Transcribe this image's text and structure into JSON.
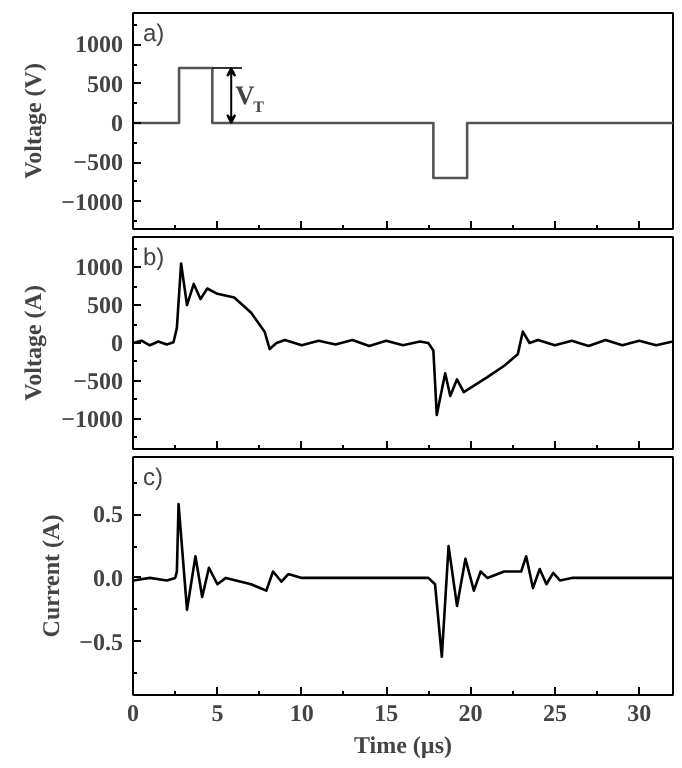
{
  "chart_data": [
    {
      "type": "step",
      "title": "a)",
      "ylabel": "Voltage (V)",
      "xlim": [
        0,
        32
      ],
      "xticks": [
        0,
        5,
        10,
        15,
        20,
        25,
        30
      ],
      "ylim": [
        -1350,
        1400
      ],
      "yticks": [
        -1000,
        -500,
        0,
        500,
        1000
      ],
      "tick_labels": "y",
      "grid": false,
      "annotations": [
        "V$_{T}$"
      ],
      "series": [
        {
          "color": "#555555",
          "x": [
            0,
            2.73,
            4.7,
            17.8,
            19.8,
            32
          ],
          "values": [
            0,
            700,
            0,
            -700,
            0,
            0
          ]
        }
      ]
    },
    {
      "type": "line",
      "title": "b)",
      "ylabel": "Voltage (A)",
      "xlim": [
        0,
        32
      ],
      "xticks": [
        0,
        5,
        10,
        15,
        20,
        25,
        30
      ],
      "ylim": [
        -1400,
        1400
      ],
      "yticks": [
        -1000,
        -500,
        0,
        500,
        1000
      ],
      "tick_labels": "y",
      "grid": false,
      "series": [
        {
          "color": "#000000",
          "x": [
            0,
            0.5,
            1,
            1.5,
            2,
            2.4,
            2.6,
            2.85,
            3.2,
            3.6,
            4.0,
            4.4,
            5,
            6,
            7,
            7.8,
            8.1,
            8.5,
            9,
            10,
            11,
            12,
            13,
            14,
            15,
            16,
            17,
            17.5,
            17.8,
            18.0,
            18.5,
            18.8,
            19.2,
            19.6,
            20.3,
            21,
            22,
            22.8,
            23.1,
            23.5,
            24,
            25,
            26,
            27,
            28,
            29,
            30,
            31,
            32
          ],
          "values": [
            0,
            30,
            -30,
            20,
            -20,
            10,
            200,
            1050,
            500,
            780,
            580,
            720,
            650,
            600,
            400,
            150,
            -80,
            0,
            40,
            -30,
            30,
            -20,
            40,
            -40,
            30,
            -30,
            20,
            0,
            -100,
            -950,
            -400,
            -700,
            -480,
            -650,
            -550,
            -450,
            -300,
            -150,
            150,
            0,
            40,
            -30,
            30,
            -40,
            40,
            -30,
            30,
            -30,
            20
          ]
        }
      ]
    },
    {
      "type": "line",
      "title": "c)",
      "ylabel": "Current (A)",
      "xlabel": "Time (µs)",
      "xlim": [
        0,
        32
      ],
      "xticks": [
        0,
        5,
        10,
        15,
        20,
        25,
        30
      ],
      "ylim": [
        -0.92,
        0.95
      ],
      "yticks": [
        -0.5,
        {
          "value": 0,
          "label": "0.0"
        },
        0.5
      ],
      "grid": false,
      "series": [
        {
          "color": "#000000",
          "x": [
            0,
            1,
            2,
            2.5,
            2.6,
            2.7,
            3.2,
            3.7,
            4.1,
            4.5,
            5,
            5.5,
            7,
            7.9,
            8.3,
            8.8,
            9.2,
            10,
            12,
            14,
            16,
            17.5,
            17.9,
            18.3,
            18.7,
            19.2,
            19.7,
            20.2,
            20.6,
            21,
            22,
            23,
            23.3,
            23.7,
            24.1,
            24.5,
            24.9,
            25.3,
            26,
            28,
            30,
            32
          ],
          "values": [
            -0.02,
            0,
            -0.02,
            0,
            0.05,
            0.58,
            -0.25,
            0.17,
            -0.15,
            0.08,
            -0.05,
            0,
            -0.05,
            -0.1,
            0.05,
            -0.03,
            0.03,
            0,
            0,
            0,
            0,
            0,
            -0.05,
            -0.62,
            0.25,
            -0.22,
            0.15,
            -0.1,
            0.05,
            0,
            0.05,
            0.05,
            0.17,
            -0.08,
            0.07,
            -0.05,
            0.04,
            -0.02,
            0,
            0,
            0,
            0
          ]
        }
      ]
    }
  ]
}
